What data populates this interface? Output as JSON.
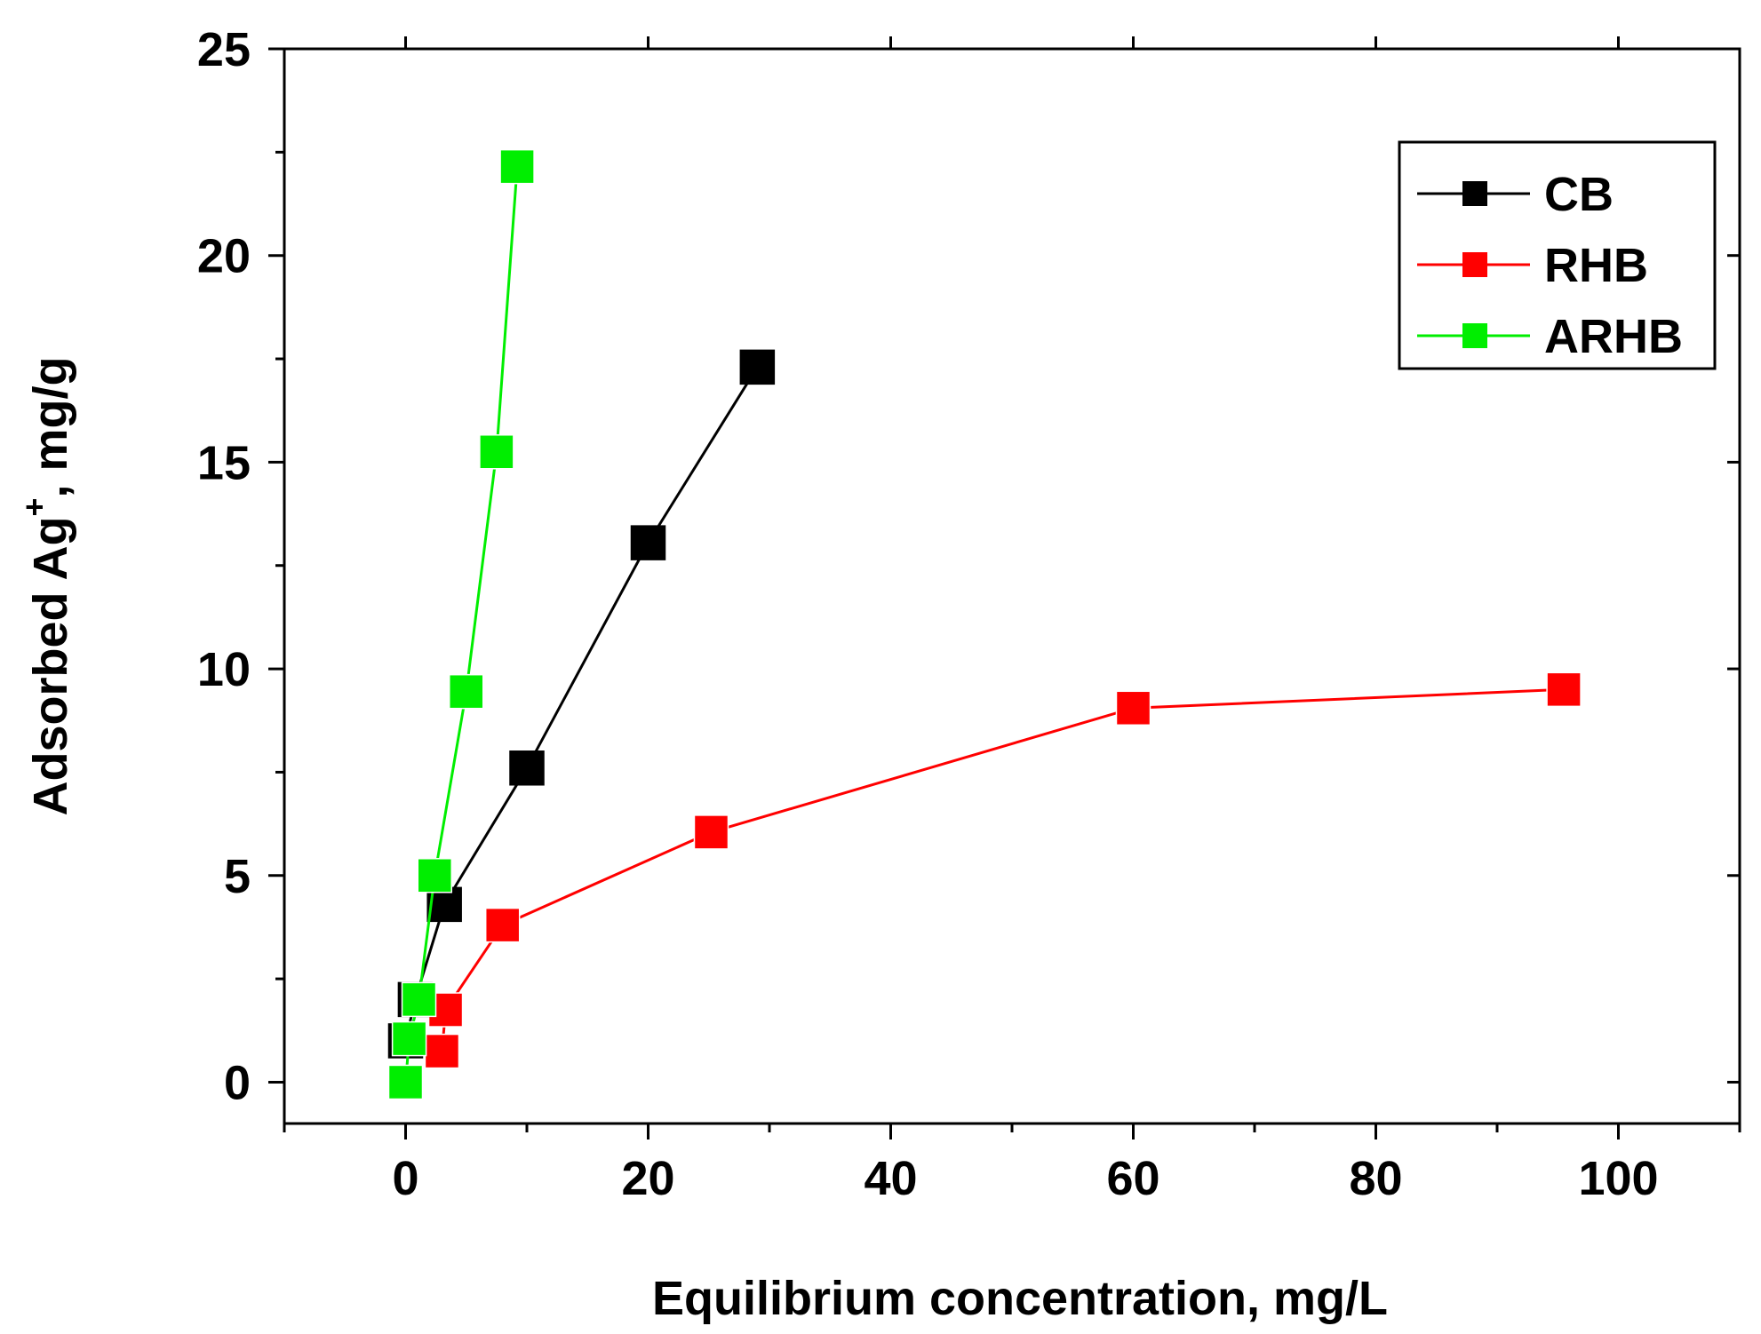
{
  "chart_data": {
    "type": "scatter",
    "xlabel": "Equilibrium concentration, mg/L",
    "ylabel": {
      "prefix": "Adsorbed Ag",
      "superscript": "+",
      "suffix": ", mg/g"
    },
    "xlim": [
      -10,
      110
    ],
    "ylim": [
      -1,
      25
    ],
    "x_ticks": [
      0,
      20,
      40,
      60,
      80,
      100
    ],
    "x_tick_labels": [
      "0",
      "20",
      "40",
      "60",
      "80",
      "100"
    ],
    "x_minor_ticks": [
      -10,
      10,
      30,
      50,
      70,
      90,
      110
    ],
    "y_ticks": [
      0,
      5,
      10,
      15,
      20,
      25
    ],
    "y_tick_labels": [
      "0",
      "5",
      "10",
      "15",
      "20",
      "25"
    ],
    "y_minor_ticks": [
      2.5,
      7.5,
      12.5,
      17.5,
      22.5
    ],
    "grid": false,
    "legend_position": "top-right",
    "series": [
      {
        "name": "CB",
        "color": "#000000",
        "marker": "square",
        "x": [
          0,
          0.8,
          3.2,
          10,
          20,
          29
        ],
        "y": [
          1.0,
          2.0,
          4.3,
          7.6,
          13.05,
          17.3
        ]
      },
      {
        "name": "RHB",
        "color": "#ff0000",
        "marker": "square",
        "x": [
          3,
          3.3,
          8,
          25.2,
          60,
          95.5
        ],
        "y": [
          0.75,
          1.75,
          3.8,
          6.05,
          9.05,
          9.5
        ]
      },
      {
        "name": "ARHB",
        "color": "#00ee00",
        "marker": "square",
        "x": [
          0,
          0.3,
          1.1,
          2.4,
          5,
          7.5,
          9.2
        ],
        "y": [
          0,
          1.05,
          2.0,
          5.0,
          9.45,
          15.25,
          22.15
        ]
      }
    ]
  }
}
